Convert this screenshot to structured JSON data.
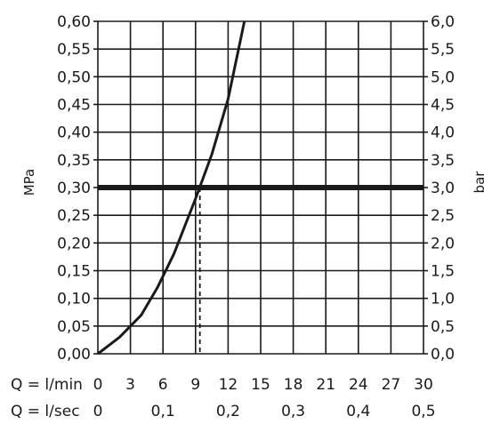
{
  "chart_data": {
    "type": "line",
    "y_left": {
      "label": "MPa",
      "range": [
        0,
        0.6
      ],
      "ticks": [
        "0,00",
        "0,05",
        "0,10",
        "0,15",
        "0,20",
        "0,25",
        "0,30",
        "0,35",
        "0,40",
        "0,45",
        "0,50",
        "0,55",
        "0,60"
      ]
    },
    "y_right": {
      "label": "bar",
      "range": [
        0,
        6.0
      ],
      "ticks": [
        "0,0",
        "0,5",
        "1,0",
        "1,5",
        "2,0",
        "2,5",
        "3,0",
        "3,5",
        "4,0",
        "4,5",
        "5,0",
        "5,5",
        "6,0"
      ]
    },
    "x_lmin": {
      "label": "Q = l/min",
      "range": [
        0,
        30
      ],
      "ticks": [
        "0",
        "3",
        "6",
        "9",
        "12",
        "15",
        "18",
        "21",
        "24",
        "27",
        "30"
      ]
    },
    "x_lsec": {
      "label": "Q = l/sec",
      "ticks": [
        {
          "value": 0,
          "text": "0"
        },
        {
          "value": 0.1,
          "text": "0,1"
        },
        {
          "value": 0.2,
          "text": "0,2"
        },
        {
          "value": 0.3,
          "text": "0,3"
        },
        {
          "value": 0.4,
          "text": "0,4"
        },
        {
          "value": 0.5,
          "text": "0,5"
        }
      ]
    },
    "grid": true,
    "series": [
      {
        "x": [
          0,
          2,
          4,
          5.5,
          7,
          9,
          10.5,
          12,
          13.5
        ],
        "y": [
          0,
          0.03,
          0.07,
          0.12,
          0.18,
          0.28,
          0.36,
          0.46,
          0.6
        ]
      }
    ],
    "reference_line": {
      "y": 0.3
    },
    "marker": {
      "x": 9.4,
      "y": 0.3
    }
  }
}
